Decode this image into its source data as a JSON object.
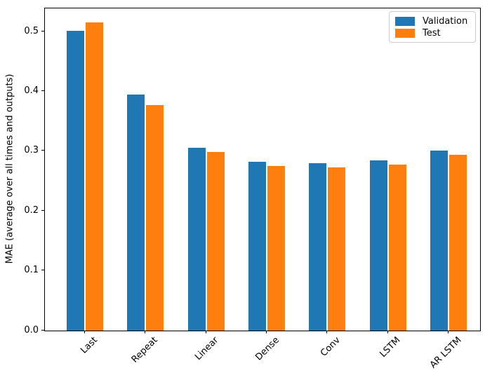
{
  "figure": {
    "background": "#ffffff",
    "axis_color": "#000000"
  },
  "chart_data": {
    "type": "bar",
    "title": "",
    "xlabel": "",
    "ylabel": "MAE (average over all times and outputs)",
    "categories": [
      "Last",
      "Repeat",
      "Linear",
      "Dense",
      "Conv",
      "LSTM",
      "AR LSTM"
    ],
    "series": [
      {
        "name": "Validation",
        "color": "#1f77b4",
        "values": [
          0.501,
          0.395,
          0.306,
          0.282,
          0.28,
          0.285,
          0.301
        ]
      },
      {
        "name": "Test",
        "color": "#ff7f0e",
        "values": [
          0.516,
          0.377,
          0.299,
          0.275,
          0.273,
          0.278,
          0.294
        ]
      }
    ],
    "ylim": [
      0,
      0.539
    ],
    "yticks": [
      0.0,
      0.1,
      0.2,
      0.3,
      0.4,
      0.5
    ],
    "ytick_labels": [
      "0.0",
      "0.1",
      "0.2",
      "0.3",
      "0.4",
      "0.5"
    ],
    "xtick_rotation_deg": 45,
    "grid": false,
    "legend": {
      "position": "upper right",
      "entries": [
        "Validation",
        "Test"
      ]
    }
  }
}
